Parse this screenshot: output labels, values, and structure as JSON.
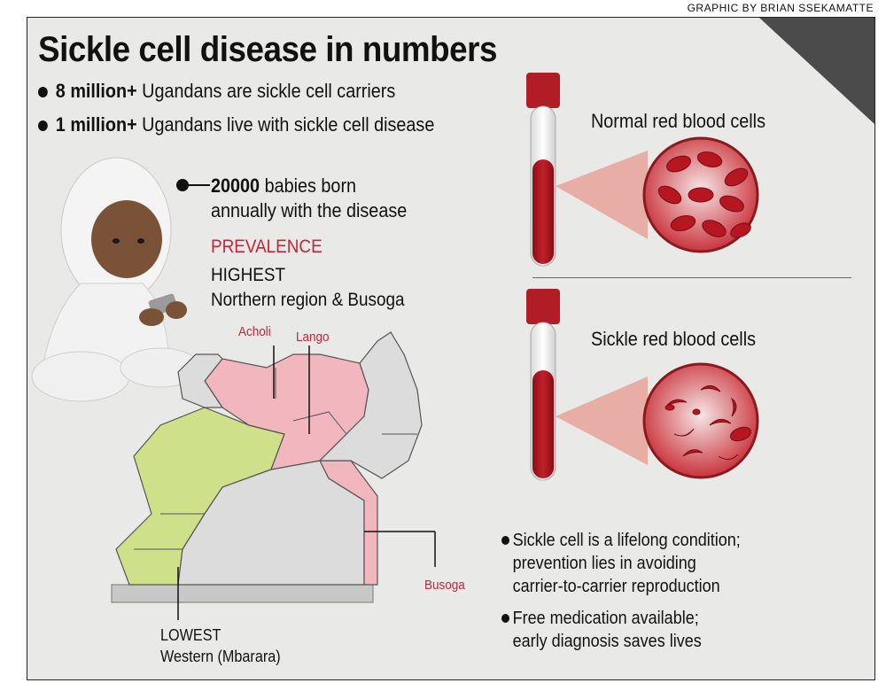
{
  "credit": "GRAPHIC BY BRIAN SSEKAMATTE",
  "title": "Sickle cell disease in numbers",
  "facts": [
    {
      "value": "8 million+",
      "text": " Ugandans are sickle cell carriers"
    },
    {
      "value": "1 million+",
      "text": " Ugandans live with sickle cell disease"
    }
  ],
  "babies": {
    "value": "20000",
    "line1": " babies born",
    "line2": "annually with the disease"
  },
  "prevalence": {
    "heading": "PREVALENCE",
    "highest_label": "HIGHEST",
    "highest_text": "Northern region & Busoga",
    "lowest_label": "LOWEST",
    "lowest_text": "Western (Mbarara)"
  },
  "map_labels": {
    "acholi": "Acholi",
    "lango": "Lango",
    "busoga": "Busoga"
  },
  "cells": {
    "normal": "Normal red blood cells",
    "sickle": "Sickle red blood cells"
  },
  "notes": [
    {
      "line1": "Sickle cell is a lifelong condition;",
      "line2": "prevention lies in avoiding",
      "line3": "carrier-to-carrier reproduction"
    },
    {
      "line1": "Free medication available;",
      "line2": "early diagnosis saves lives"
    }
  ],
  "colors": {
    "accent_red": "#c3253a",
    "high_region": "#f2b6bf",
    "low_region": "#cfe08a",
    "neutral_region": "#dcdcdc",
    "background": "#e9e9e7"
  }
}
